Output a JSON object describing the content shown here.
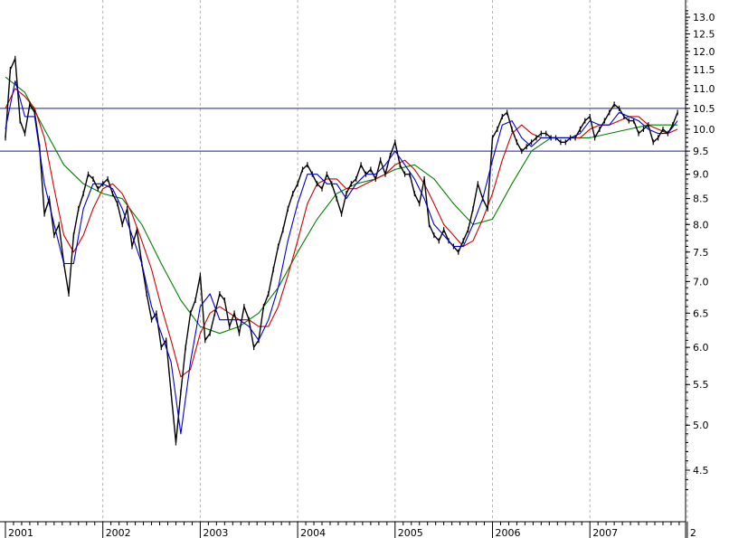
{
  "chart_data": {
    "type": "line",
    "title": "",
    "xlabel": "",
    "ylabel": "",
    "x_ticks": [
      "2001",
      "2002",
      "2003",
      "2004",
      "2005",
      "2006",
      "2007",
      "2"
    ],
    "y_ticks": [
      "4.5",
      "5.0",
      "5.5",
      "6.0",
      "6.5",
      "7.0",
      "7.5",
      "8.0",
      "8.5",
      "9.0",
      "9.5",
      "10.0",
      "10.5",
      "11.0",
      "11.5",
      "12.0",
      "12.5",
      "13.0"
    ],
    "ylim": [
      4.2,
      13.3
    ],
    "y_scale": "log",
    "grid": "vertical dashed at year boundaries",
    "horizontal_lines": [
      10.5,
      9.5
    ],
    "series": [
      {
        "color": "#000000",
        "x": [
          2001.0,
          2001.05,
          2001.1,
          2001.15,
          2001.2,
          2001.25,
          2001.3,
          2001.35,
          2001.4,
          2001.45,
          2001.5,
          2001.55,
          2001.6,
          2001.65,
          2001.7,
          2001.75,
          2001.8,
          2001.85,
          2001.9,
          2001.95,
          2002.0,
          2002.05,
          2002.1,
          2002.15,
          2002.2,
          2002.25,
          2002.3,
          2002.35,
          2002.4,
          2002.45,
          2002.5,
          2002.55,
          2002.6,
          2002.65,
          2002.7,
          2002.75,
          2002.8,
          2002.85,
          2002.9,
          2002.95,
          2003.0,
          2003.05,
          2003.1,
          2003.15,
          2003.2,
          2003.25,
          2003.3,
          2003.35,
          2003.4,
          2003.45,
          2003.5,
          2003.55,
          2003.6,
          2003.65,
          2003.7,
          2003.75,
          2003.8,
          2003.85,
          2003.9,
          2003.95,
          2004.0,
          2004.05,
          2004.1,
          2004.15,
          2004.2,
          2004.25,
          2004.3,
          2004.35,
          2004.4,
          2004.45,
          2004.5,
          2004.55,
          2004.6,
          2004.65,
          2004.7,
          2004.75,
          2004.8,
          2004.85,
          2004.9,
          2004.95,
          2005.0,
          2005.05,
          2005.1,
          2005.15,
          2005.2,
          2005.25,
          2005.3,
          2005.35,
          2005.4,
          2005.45,
          2005.5,
          2005.55,
          2005.6,
          2005.65,
          2005.7,
          2005.75,
          2005.8,
          2005.85,
          2005.9,
          2005.95,
          2006.0,
          2006.05,
          2006.1,
          2006.15,
          2006.2,
          2006.25,
          2006.3,
          2006.35,
          2006.4,
          2006.45,
          2006.5,
          2006.55,
          2006.6,
          2006.65,
          2006.7,
          2006.75,
          2006.8,
          2006.85,
          2006.9,
          2006.95,
          2007.0,
          2007.05,
          2007.1,
          2007.15,
          2007.2,
          2007.25,
          2007.3,
          2007.35,
          2007.4,
          2007.45,
          2007.5,
          2007.55,
          2007.6,
          2007.65,
          2007.7,
          2007.75,
          2007.8,
          2007.85,
          2007.9
        ],
        "values": [
          9.8,
          11.5,
          11.8,
          10.2,
          9.9,
          10.6,
          10.4,
          9.6,
          8.2,
          8.5,
          7.8,
          8.0,
          7.3,
          6.8,
          7.8,
          8.3,
          8.6,
          9.0,
          8.9,
          8.7,
          8.8,
          8.9,
          8.6,
          8.4,
          8.0,
          8.3,
          7.6,
          7.9,
          7.3,
          6.8,
          6.4,
          6.5,
          6.0,
          6.1,
          5.4,
          4.8,
          5.4,
          6.0,
          6.5,
          6.7,
          7.1,
          6.1,
          6.2,
          6.5,
          6.8,
          6.7,
          6.3,
          6.5,
          6.2,
          6.6,
          6.4,
          6.0,
          6.1,
          6.6,
          6.8,
          7.2,
          7.6,
          7.9,
          8.3,
          8.6,
          8.8,
          9.1,
          9.2,
          9.0,
          8.8,
          8.7,
          9.0,
          8.8,
          8.5,
          8.2,
          8.6,
          8.8,
          8.9,
          9.2,
          9.0,
          9.1,
          8.9,
          9.3,
          9.0,
          9.4,
          9.7,
          9.2,
          9.0,
          9.0,
          8.6,
          8.4,
          8.9,
          8.0,
          7.8,
          7.7,
          7.9,
          7.7,
          7.6,
          7.5,
          7.7,
          7.9,
          8.3,
          8.8,
          8.5,
          8.3,
          9.8,
          10.0,
          10.3,
          10.4,
          10.0,
          9.7,
          9.5,
          9.6,
          9.7,
          9.8,
          9.9,
          9.9,
          9.8,
          9.8,
          9.7,
          9.7,
          9.8,
          9.8,
          10.0,
          10.2,
          10.3,
          9.8,
          10.0,
          10.2,
          10.4,
          10.6,
          10.5,
          10.3,
          10.2,
          10.2,
          9.9,
          10.0,
          10.1,
          9.7,
          9.8,
          10.0,
          9.9,
          10.1,
          10.4
        ]
      },
      {
        "color": "#0000cc",
        "x": [
          2001.0,
          2001.1,
          2001.2,
          2001.3,
          2001.4,
          2001.5,
          2001.6,
          2001.7,
          2001.8,
          2001.9,
          2002.0,
          2002.1,
          2002.2,
          2002.3,
          2002.4,
          2002.5,
          2002.6,
          2002.7,
          2002.8,
          2002.9,
          2003.0,
          2003.1,
          2003.2,
          2003.3,
          2003.4,
          2003.5,
          2003.6,
          2003.7,
          2003.8,
          2003.9,
          2004.0,
          2004.1,
          2004.2,
          2004.3,
          2004.4,
          2004.5,
          2004.6,
          2004.7,
          2004.8,
          2004.9,
          2005.0,
          2005.1,
          2005.2,
          2005.3,
          2005.4,
          2005.5,
          2005.6,
          2005.7,
          2005.8,
          2005.9,
          2006.0,
          2006.1,
          2006.2,
          2006.3,
          2006.4,
          2006.5,
          2006.6,
          2006.7,
          2006.8,
          2006.9,
          2007.0,
          2007.1,
          2007.2,
          2007.3,
          2007.4,
          2007.5,
          2007.6,
          2007.7,
          2007.8,
          2007.9
        ],
        "values": [
          10.0,
          11.2,
          10.3,
          10.3,
          8.8,
          8.0,
          7.3,
          7.3,
          8.3,
          8.8,
          8.8,
          8.7,
          8.3,
          7.8,
          7.3,
          6.6,
          6.2,
          5.8,
          4.9,
          5.8,
          6.6,
          6.8,
          6.4,
          6.4,
          6.4,
          6.3,
          6.1,
          6.4,
          6.9,
          7.7,
          8.4,
          9.0,
          9.0,
          8.8,
          8.8,
          8.5,
          8.8,
          9.0,
          9.0,
          9.2,
          9.5,
          9.2,
          8.9,
          8.5,
          8.0,
          7.8,
          7.6,
          7.6,
          8.0,
          8.5,
          9.3,
          10.1,
          10.2,
          9.8,
          9.6,
          9.8,
          9.8,
          9.8,
          9.8,
          9.9,
          10.2,
          10.1,
          10.1,
          10.4,
          10.3,
          10.2,
          10.0,
          9.9,
          9.9,
          10.2
        ]
      },
      {
        "color": "#cc0000",
        "x": [
          2001.0,
          2001.1,
          2001.2,
          2001.3,
          2001.4,
          2001.5,
          2001.6,
          2001.7,
          2001.8,
          2001.9,
          2002.0,
          2002.1,
          2002.2,
          2002.3,
          2002.4,
          2002.5,
          2002.6,
          2002.7,
          2002.8,
          2002.9,
          2003.0,
          2003.1,
          2003.2,
          2003.3,
          2003.4,
          2003.5,
          2003.6,
          2003.7,
          2003.8,
          2003.9,
          2004.0,
          2004.1,
          2004.2,
          2004.3,
          2004.4,
          2004.5,
          2004.6,
          2004.7,
          2004.8,
          2004.9,
          2005.0,
          2005.1,
          2005.2,
          2005.3,
          2005.4,
          2005.5,
          2005.6,
          2005.7,
          2005.8,
          2005.9,
          2006.0,
          2006.1,
          2006.2,
          2006.3,
          2006.4,
          2006.5,
          2006.6,
          2006.7,
          2006.8,
          2006.9,
          2007.0,
          2007.1,
          2007.2,
          2007.3,
          2007.4,
          2007.5,
          2007.6,
          2007.7,
          2007.8,
          2007.9
        ],
        "values": [
          10.5,
          11.0,
          10.8,
          10.5,
          9.8,
          8.7,
          7.8,
          7.5,
          7.8,
          8.3,
          8.7,
          8.8,
          8.6,
          8.2,
          7.7,
          7.2,
          6.6,
          6.1,
          5.6,
          5.7,
          6.2,
          6.5,
          6.6,
          6.5,
          6.4,
          6.4,
          6.3,
          6.3,
          6.6,
          7.1,
          7.7,
          8.4,
          8.8,
          8.9,
          8.9,
          8.7,
          8.7,
          8.8,
          8.9,
          9.0,
          9.2,
          9.3,
          9.1,
          8.8,
          8.4,
          8.0,
          7.8,
          7.6,
          7.7,
          8.1,
          8.6,
          9.3,
          9.9,
          10.1,
          9.9,
          9.8,
          9.8,
          9.8,
          9.8,
          9.8,
          10.0,
          10.1,
          10.1,
          10.2,
          10.3,
          10.3,
          10.1,
          10.0,
          9.9,
          10.0
        ]
      },
      {
        "color": "#008000",
        "x": [
          2001.0,
          2001.2,
          2001.4,
          2001.6,
          2001.8,
          2002.0,
          2002.2,
          2002.4,
          2002.6,
          2002.8,
          2003.0,
          2003.2,
          2003.4,
          2003.6,
          2003.8,
          2004.0,
          2004.2,
          2004.4,
          2004.6,
          2004.8,
          2005.0,
          2005.2,
          2005.4,
          2005.6,
          2005.8,
          2006.0,
          2006.2,
          2006.4,
          2006.6,
          2006.8,
          2007.0,
          2007.2,
          2007.4,
          2007.6,
          2007.8,
          2007.9
        ],
        "values": [
          11.3,
          10.9,
          10.0,
          9.2,
          8.8,
          8.6,
          8.5,
          8.0,
          7.3,
          6.7,
          6.3,
          6.2,
          6.3,
          6.5,
          6.9,
          7.5,
          8.1,
          8.6,
          8.8,
          8.9,
          9.1,
          9.2,
          8.9,
          8.4,
          8.0,
          8.1,
          8.8,
          9.5,
          9.8,
          9.8,
          9.8,
          9.9,
          10.0,
          10.1,
          10.1,
          10.1
        ]
      }
    ]
  }
}
